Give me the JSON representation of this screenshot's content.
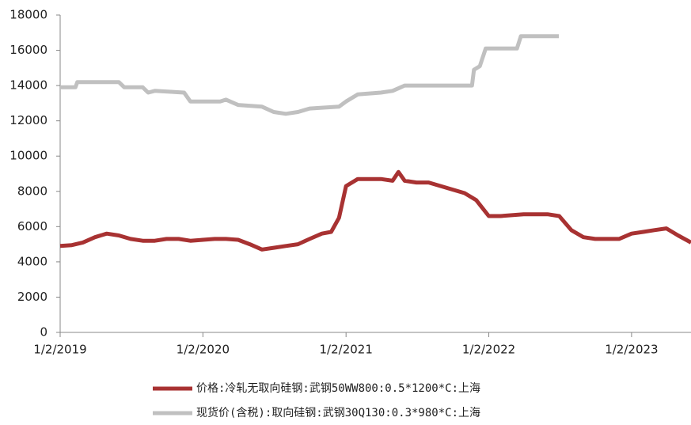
{
  "chart_data": {
    "type": "line",
    "xlim": [
      "2019-01-02",
      "2023-06-03"
    ],
    "xticks": [
      {
        "value": "2019-01-02",
        "label": "1/2/2019"
      },
      {
        "value": "2020-01-02",
        "label": "1/2/2020"
      },
      {
        "value": "2021-01-02",
        "label": "1/2/2021"
      },
      {
        "value": "2022-01-02",
        "label": "1/2/2022"
      },
      {
        "value": "2023-01-02",
        "label": "1/2/2023"
      }
    ],
    "ylim": [
      0,
      18000
    ],
    "yticks": [
      0,
      2000,
      4000,
      6000,
      8000,
      10000,
      12000,
      14000,
      16000,
      18000
    ],
    "grid": false,
    "series": [
      {
        "name": "价格:冷轧无取向硅钢:武钢50WW800:0.5*1200*C:上海",
        "color": "#a83232",
        "x": [
          "2019-01-02",
          "2019-02-01",
          "2019-03-01",
          "2019-04-01",
          "2019-05-01",
          "2019-06-01",
          "2019-07-01",
          "2019-08-01",
          "2019-09-01",
          "2019-10-01",
          "2019-11-01",
          "2019-12-01",
          "2020-01-02",
          "2020-02-01",
          "2020-03-01",
          "2020-04-01",
          "2020-05-01",
          "2020-06-01",
          "2020-07-01",
          "2020-08-01",
          "2020-09-01",
          "2020-10-01",
          "2020-11-01",
          "2020-11-25",
          "2020-12-15",
          "2021-01-02",
          "2021-02-01",
          "2021-03-01",
          "2021-04-01",
          "2021-05-01",
          "2021-05-16",
          "2021-06-01",
          "2021-07-01",
          "2021-08-01",
          "2021-09-01",
          "2021-10-01",
          "2021-11-01",
          "2021-12-01",
          "2022-01-02",
          "2022-02-01",
          "2022-04-01",
          "2022-06-01",
          "2022-07-01",
          "2022-08-01",
          "2022-09-01",
          "2022-10-01",
          "2022-12-01",
          "2023-01-02",
          "2023-02-01",
          "2023-03-01",
          "2023-04-01",
          "2023-05-01",
          "2023-06-03"
        ],
        "values": [
          4900,
          4950,
          5100,
          5400,
          5600,
          5500,
          5300,
          5200,
          5200,
          5300,
          5300,
          5200,
          5250,
          5300,
          5300,
          5250,
          5000,
          4700,
          4800,
          4900,
          5000,
          5300,
          5600,
          5700,
          6500,
          8300,
          8700,
          8700,
          8700,
          8600,
          9100,
          8600,
          8500,
          8500,
          8300,
          8100,
          7900,
          7500,
          6600,
          6600,
          6700,
          6700,
          6600,
          5800,
          5400,
          5300,
          5300,
          5600,
          5700,
          5800,
          5900,
          5500,
          5100
        ]
      },
      {
        "name": "现货价(含税):取向硅钢:武钢30Q130:0.3*980*C:上海",
        "color": "#c0c0c0",
        "x": [
          "2019-01-02",
          "2019-02-10",
          "2019-02-15",
          "2019-06-01",
          "2019-06-15",
          "2019-08-01",
          "2019-08-15",
          "2019-09-01",
          "2019-11-15",
          "2019-12-01",
          "2020-02-15",
          "2020-03-01",
          "2020-04-01",
          "2020-06-01",
          "2020-07-01",
          "2020-08-01",
          "2020-09-01",
          "2020-10-01",
          "2020-12-15",
          "2021-01-02",
          "2021-02-01",
          "2021-04-01",
          "2021-05-01",
          "2021-06-01",
          "2021-11-20",
          "2021-11-25",
          "2021-12-10",
          "2021-12-25",
          "2022-03-15",
          "2022-03-25",
          "2022-06-30"
        ],
        "values": [
          13900,
          13900,
          14200,
          14200,
          13900,
          13900,
          13600,
          13700,
          13600,
          13100,
          13100,
          13200,
          12900,
          12800,
          12500,
          12400,
          12500,
          12700,
          12800,
          13100,
          13500,
          13600,
          13700,
          14000,
          14000,
          14900,
          15100,
          16100,
          16100,
          16800,
          16800
        ]
      }
    ]
  }
}
